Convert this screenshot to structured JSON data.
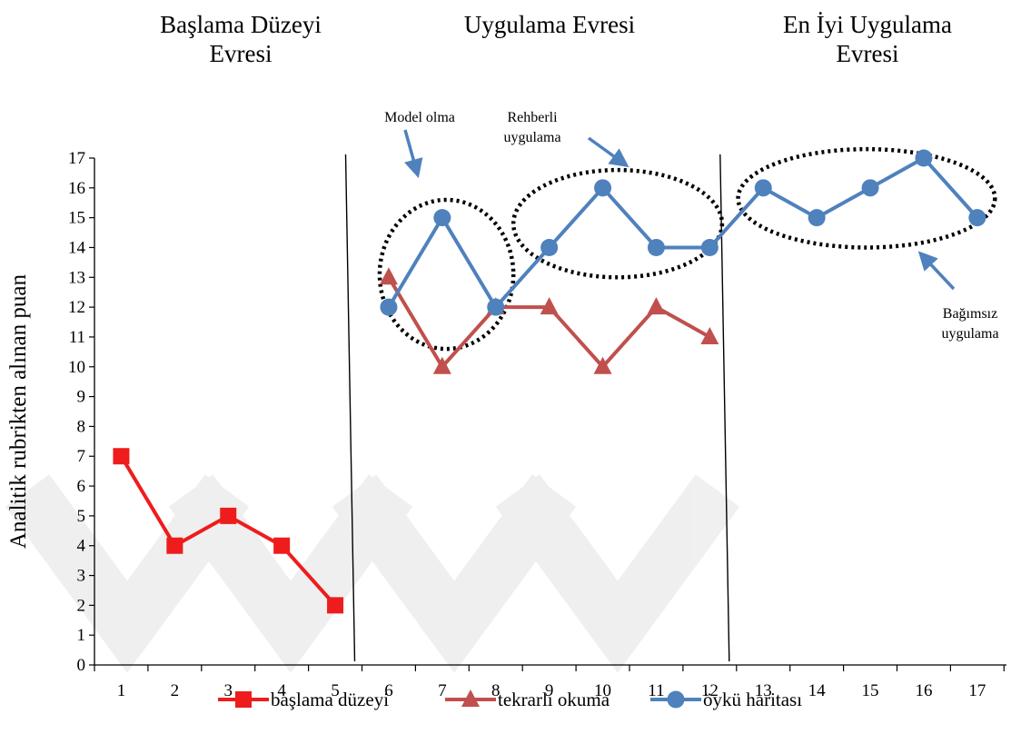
{
  "phase_titles": [
    {
      "lines": [
        "Başlama Düzeyi",
        "Evresi"
      ]
    },
    {
      "lines": [
        "Uygulama Evresi"
      ]
    },
    {
      "lines": [
        "En İyi Uygulama",
        "Evresi"
      ]
    }
  ],
  "annotations": [
    {
      "lines": [
        "Model olma"
      ]
    },
    {
      "lines": [
        "Rehberli",
        "uygulama"
      ]
    },
    {
      "lines": [
        "Bağımsız",
        "uygulama"
      ]
    }
  ],
  "chart_data": {
    "type": "line",
    "title": "",
    "xlabel": "",
    "ylabel": "Analitik rubrikten alınan puan",
    "xlim": [
      1,
      17
    ],
    "ylim": [
      0,
      17
    ],
    "x_ticks": [
      1,
      2,
      3,
      4,
      5,
      6,
      7,
      8,
      9,
      10,
      11,
      12,
      13,
      14,
      15,
      16,
      17
    ],
    "y_ticks": [
      0,
      1,
      2,
      3,
      4,
      5,
      6,
      7,
      8,
      9,
      10,
      11,
      12,
      13,
      14,
      15,
      16,
      17
    ],
    "grid": false,
    "legend_position": "bottom",
    "phase_change_lines_after": [
      5,
      12
    ],
    "series": [
      {
        "name": "başlama düzeyi",
        "marker": "square",
        "color": "#ee1c1c",
        "x": [
          1,
          2,
          3,
          4,
          5
        ],
        "values": [
          7,
          4,
          5,
          4,
          2
        ]
      },
      {
        "name": "tekrarlı okuma",
        "marker": "triangle",
        "color": "#c0504d",
        "x": [
          6,
          7,
          8,
          9,
          10,
          11,
          12
        ],
        "values": [
          13,
          10,
          12,
          12,
          10,
          12,
          11
        ]
      },
      {
        "name": "öykü haritası",
        "marker": "circle",
        "color": "#4f81bd",
        "x": [
          6,
          7,
          8,
          9,
          10,
          11,
          12,
          13,
          14,
          15,
          16,
          17
        ],
        "values": [
          12,
          15,
          12,
          14,
          16,
          14,
          14,
          16,
          15,
          16,
          17,
          15
        ]
      }
    ]
  }
}
